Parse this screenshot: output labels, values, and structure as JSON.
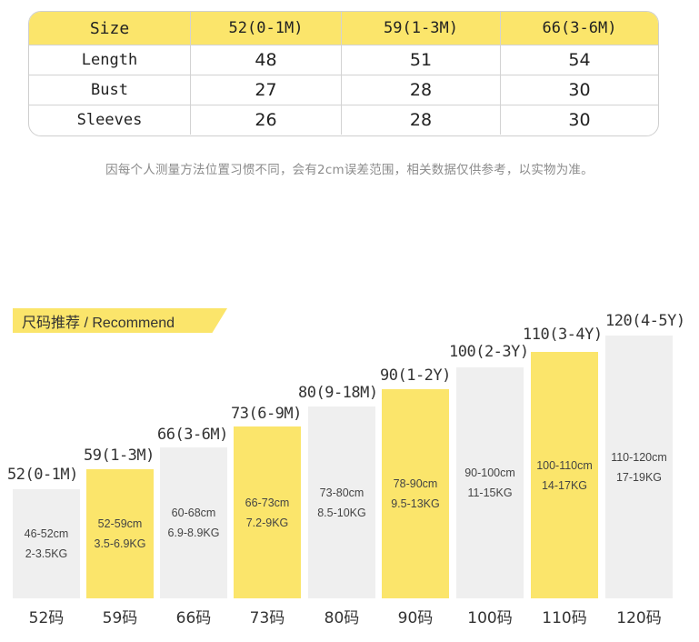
{
  "size_table": {
    "header": [
      "Size",
      "52(0-1M)",
      "59(1-3M)",
      "66(3-6M)"
    ],
    "rows": [
      [
        "Length",
        "48",
        "51",
        "54"
      ],
      [
        "Bust",
        "27",
        "28",
        "30"
      ],
      [
        "Sleeves",
        "26",
        "28",
        "30"
      ]
    ]
  },
  "note": "因每个人测量方法位置习惯不同，会有2cm误差范围，相关数据仅供参考，以实物为准。",
  "recommend": {
    "title": "尺码推荐 / Recommend",
    "colors": {
      "highlight": "#fbe56b",
      "muted": "#efefef"
    },
    "sizes": [
      {
        "top_label": "52(0-1M)",
        "height_range": "46-52cm",
        "weight_range": "2-3.5KG",
        "bottom_label": "52码",
        "highlight": false
      },
      {
        "top_label": "59(1-3M)",
        "height_range": "52-59cm",
        "weight_range": "3.5-6.9KG",
        "bottom_label": "59码",
        "highlight": true
      },
      {
        "top_label": "66(3-6M)",
        "height_range": "60-68cm",
        "weight_range": "6.9-8.9KG",
        "bottom_label": "66码",
        "highlight": false
      },
      {
        "top_label": "73(6-9M)",
        "height_range": "66-73cm",
        "weight_range": "7.2-9KG",
        "bottom_label": "73码",
        "highlight": true
      },
      {
        "top_label": "80(9-18M)",
        "height_range": "73-80cm",
        "weight_range": "8.5-10KG",
        "bottom_label": "80码",
        "highlight": false
      },
      {
        "top_label": "90(1-2Y)",
        "height_range": "78-90cm",
        "weight_range": "9.5-13KG",
        "bottom_label": "90码",
        "highlight": true
      },
      {
        "top_label": "100(2-3Y)",
        "height_range": "90-100cm",
        "weight_range": "11-15KG",
        "bottom_label": "100码",
        "highlight": false
      },
      {
        "top_label": "110(3-4Y)",
        "height_range": "100-110cm",
        "weight_range": "14-17KG",
        "bottom_label": "110码",
        "highlight": true
      },
      {
        "top_label": "120(4-5Y)",
        "height_range": "110-120cm",
        "weight_range": "17-19KG",
        "bottom_label": "120码",
        "highlight": false
      }
    ]
  }
}
